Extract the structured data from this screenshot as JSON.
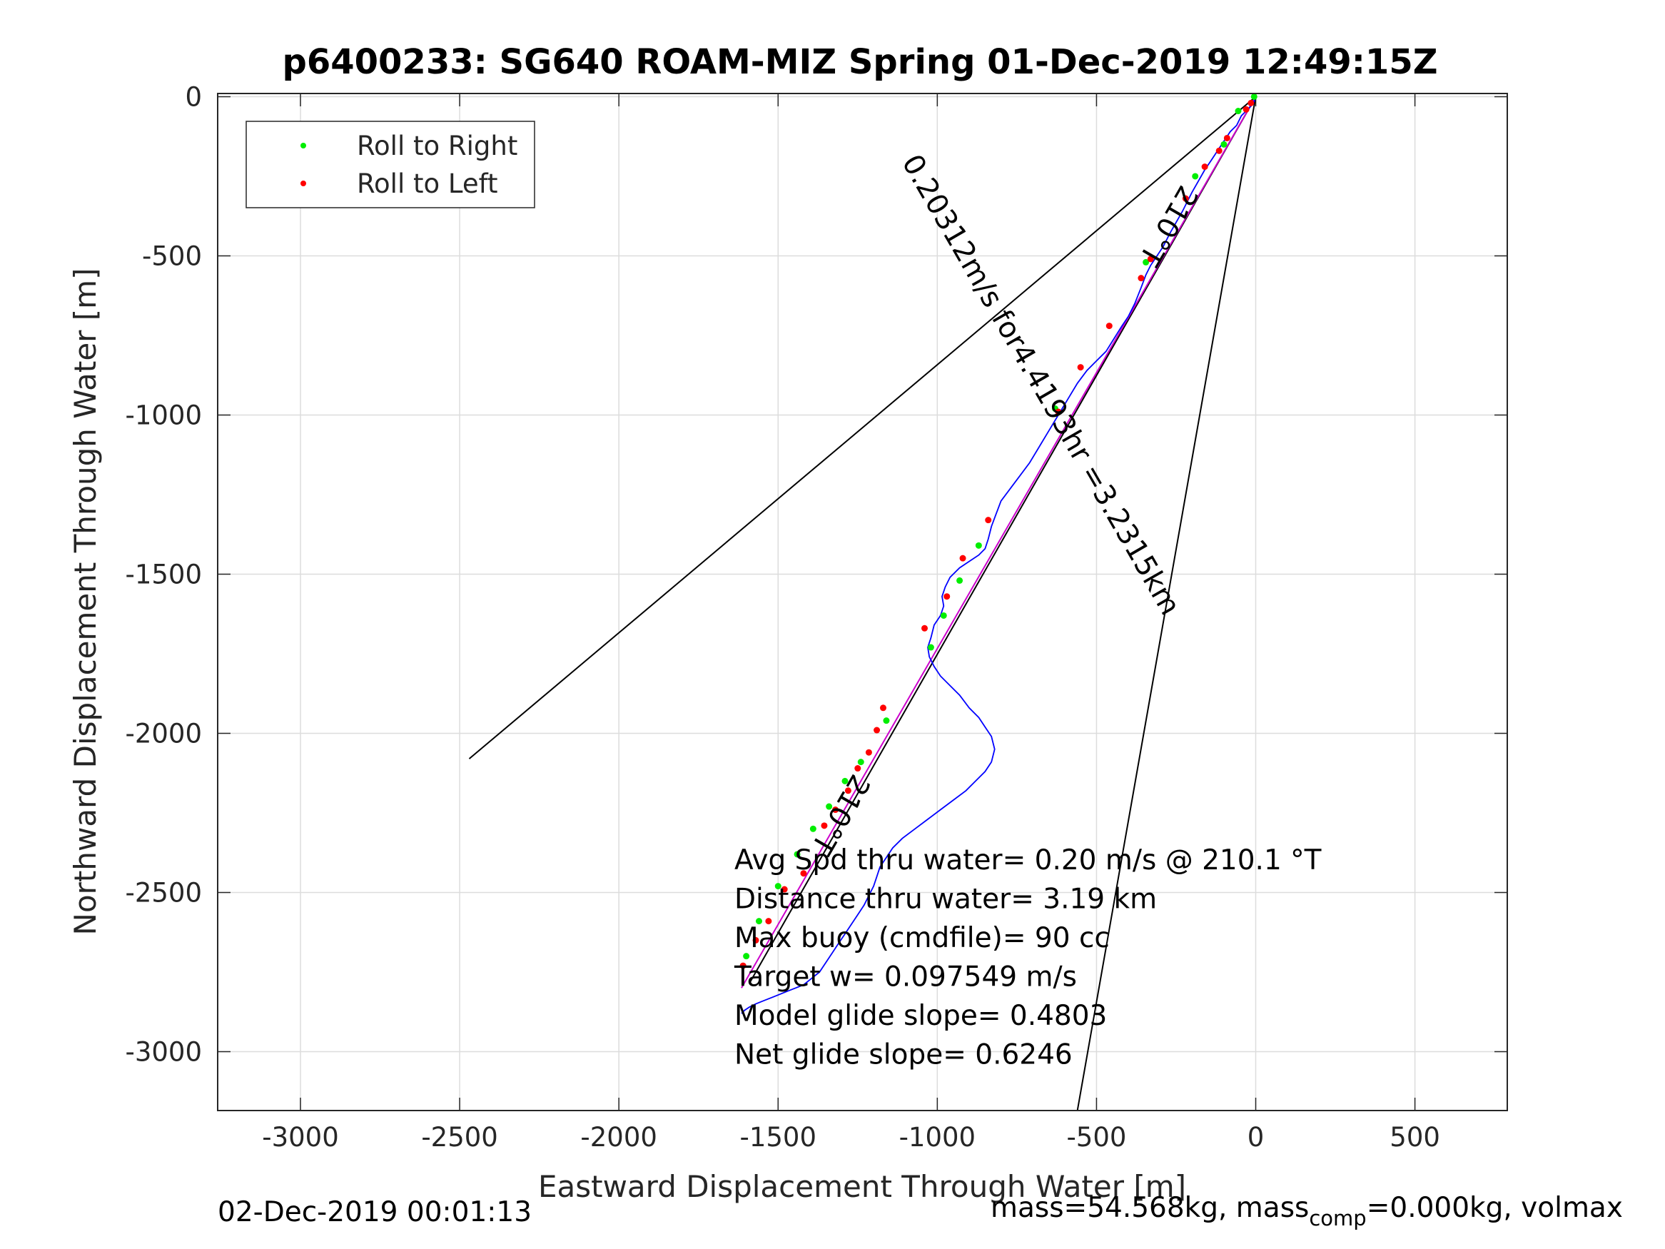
{
  "title": "p6400233: SG640 ROAM-MIZ Spring 01-Dec-2019 12:49:15Z",
  "footer_left": "02-Dec-2019 00:01:13",
  "footer_right": {
    "mass": "mass=54.568kg, mass",
    "sub": "comp",
    "rest": "=0.000kg, volmax"
  },
  "chart_data": {
    "type": "scatter",
    "title": "p6400233: SG640 ROAM-MIZ Spring 01-Dec-2019 12:49:15Z",
    "xlabel": "Eastward Displacement Through Water [m]",
    "ylabel": "Northward Displacement Through Water [m]",
    "xlim": [
      -3260,
      790
    ],
    "ylim": [
      -3185,
      10
    ],
    "xticks": [
      -3000,
      -2500,
      -2000,
      -1500,
      -1000,
      -500,
      0,
      500
    ],
    "yticks": [
      0,
      -500,
      -1000,
      -1500,
      -2000,
      -2500,
      -3000
    ],
    "grid": true,
    "legend_position": "top-left",
    "legend": [
      {
        "label": "Roll to Right",
        "color": "#00ee00"
      },
      {
        "label": "Roll to Left",
        "color": "#ff0000"
      }
    ],
    "track": {
      "color": "#0000ff",
      "x": [
        0,
        -5,
        -15,
        -30,
        -45,
        -60,
        -80,
        -100,
        -120,
        -140,
        -160,
        -180,
        -200,
        -215,
        -230,
        -250,
        -270,
        -290,
        -310,
        -330,
        -345,
        -360,
        -380,
        -400,
        -420,
        -445,
        -470,
        -500,
        -530,
        -560,
        -590,
        -620,
        -650,
        -680,
        -710,
        -740,
        -770,
        -800,
        -815,
        -830,
        -840,
        -850,
        -870,
        -900,
        -930,
        -960,
        -975,
        -985,
        -980,
        -990,
        -1010,
        -1020,
        -1030,
        -1025,
        -1010,
        -990,
        -960,
        -930,
        -900,
        -870,
        -850,
        -830,
        -820,
        -830,
        -850,
        -880,
        -910,
        -950,
        -990,
        -1030,
        -1070,
        -1110,
        -1140,
        -1160,
        -1180,
        -1190,
        -1200,
        -1215,
        -1230,
        -1250,
        -1270,
        -1290,
        -1310,
        -1330,
        -1350,
        -1370,
        -1395,
        -1420,
        -1445,
        -1470,
        -1495,
        -1520,
        -1545,
        -1570,
        -1590,
        -1605,
        -1615
      ],
      "y": [
        0,
        -15,
        -30,
        -45,
        -60,
        -90,
        -110,
        -140,
        -170,
        -200,
        -230,
        -265,
        -300,
        -330,
        -360,
        -395,
        -430,
        -470,
        -500,
        -530,
        -560,
        -600,
        -650,
        -690,
        -720,
        -760,
        -800,
        -830,
        -860,
        -900,
        -950,
        -1000,
        -1050,
        -1100,
        -1150,
        -1190,
        -1230,
        -1270,
        -1310,
        -1350,
        -1390,
        -1420,
        -1440,
        -1460,
        -1480,
        -1510,
        -1540,
        -1570,
        -1600,
        -1630,
        -1660,
        -1700,
        -1730,
        -1760,
        -1790,
        -1820,
        -1850,
        -1880,
        -1920,
        -1950,
        -1980,
        -2010,
        -2050,
        -2090,
        -2120,
        -2150,
        -2180,
        -2210,
        -2240,
        -2270,
        -2300,
        -2330,
        -2360,
        -2390,
        -2420,
        -2450,
        -2480,
        -2510,
        -2540,
        -2570,
        -2600,
        -2630,
        -2660,
        -2690,
        -2720,
        -2750,
        -2770,
        -2790,
        -2800,
        -2810,
        -2820,
        -2830,
        -2840,
        -2850,
        -2860,
        -2870,
        -2880
      ]
    },
    "roll_right_points": {
      "x": [
        -5,
        -55,
        -100,
        -190,
        -345,
        -630,
        -870,
        -930,
        -980,
        -1020,
        -1160,
        -1240,
        -1290,
        -1340,
        -1390,
        -1440,
        -1500,
        -1560,
        -1600
      ],
      "y": [
        0,
        -45,
        -150,
        -250,
        -520,
        -980,
        -1410,
        -1520,
        -1630,
        -1730,
        -1960,
        -2090,
        -2150,
        -2230,
        -2300,
        -2380,
        -2480,
        -2590,
        -2700
      ]
    },
    "roll_left_points": {
      "x": [
        -15,
        -30,
        -90,
        -115,
        -160,
        -220,
        -330,
        -360,
        -460,
        -550,
        -620,
        -840,
        -920,
        -970,
        -1040,
        -1170,
        -1190,
        -1215,
        -1250,
        -1280,
        -1320,
        -1355,
        -1420,
        -1480,
        -1530,
        -1570,
        -1610
      ],
      "y": [
        -20,
        -40,
        -130,
        -170,
        -220,
        -320,
        -510,
        -570,
        -720,
        -850,
        -990,
        -1330,
        -1450,
        -1570,
        -1670,
        -1920,
        -1990,
        -2060,
        -2110,
        -2180,
        -2240,
        -2290,
        -2440,
        -2490,
        -2590,
        -2650,
        -2730
      ]
    },
    "reference_lines": [
      {
        "color": "#000000",
        "x": [
          0,
          -2470
        ],
        "y": [
          0,
          -2080
        ]
      },
      {
        "color": "#000000",
        "x": [
          0,
          -1590
        ],
        "y": [
          0,
          -2785
        ]
      },
      {
        "color": "#000000",
        "x": [
          0,
          -560
        ],
        "y": [
          0,
          -3185
        ]
      },
      {
        "color": "#cc00cc",
        "x": [
          0,
          -1615
        ],
        "y": [
          0,
          -2800
        ]
      }
    ],
    "annotations": [
      {
        "text": "210°T",
        "x": -300,
        "y": -390,
        "rotation": 120
      },
      {
        "text": "0.20312m/s for4.4193hr =3.2315km",
        "x": -700,
        "y": -920,
        "rotation": 60
      },
      {
        "text": "210°T",
        "x": -1330,
        "y": -2240,
        "rotation": 120
      }
    ],
    "summary_text": [
      "Avg Spd thru water=  0.20 m/s @ 210.1 °T",
      "Distance thru water=  3.19 km",
      "Max buoy (cmdfile)= 90 cc",
      "Target w= 0.097549 m/s",
      "Model glide slope= 0.4803",
      "Net glide slope= 0.6246"
    ]
  }
}
